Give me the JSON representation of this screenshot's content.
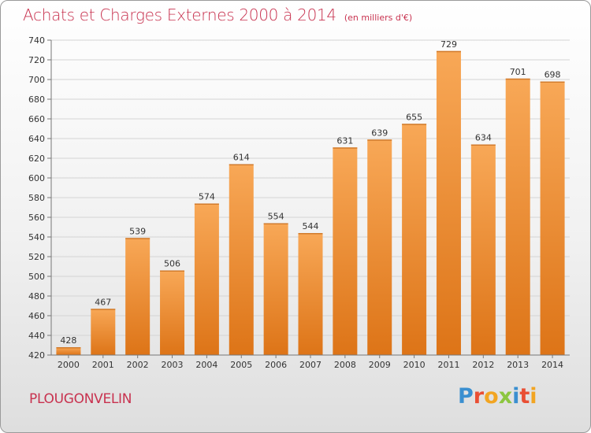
{
  "title": "Achats et Charges Externes 2000 à 2014",
  "unit_label": "(en milliers d'€)",
  "commune": "PLOUGONVELIN",
  "logo": {
    "letters": [
      "P",
      "r",
      "o",
      "x",
      "i",
      "t",
      "i"
    ],
    "colors": [
      "#3a8fd0",
      "#e94f34",
      "#f2a522",
      "#8cc63f",
      "#3a8fd0",
      "#e94f34",
      "#f2a522"
    ]
  },
  "colors": {
    "bar_light": "#f8a857",
    "bar_dark": "#dd7417",
    "accent": "#c8324f"
  },
  "chart_data": {
    "type": "bar",
    "title": "Achats et Charges Externes 2000 à 2014",
    "xlabel": "",
    "ylabel": "",
    "categories": [
      "2000",
      "2001",
      "2002",
      "2003",
      "2004",
      "2005",
      "2006",
      "2007",
      "2008",
      "2009",
      "2010",
      "2011",
      "2012",
      "2013",
      "2014"
    ],
    "values": [
      428,
      467,
      539,
      506,
      574,
      614,
      554,
      544,
      631,
      639,
      655,
      729,
      634,
      701,
      698
    ],
    "ylim": [
      420,
      740
    ],
    "yticks": [
      420,
      440,
      460,
      480,
      500,
      520,
      540,
      560,
      580,
      600,
      620,
      640,
      660,
      680,
      700,
      720,
      740
    ],
    "grid": true,
    "legend": "none"
  }
}
